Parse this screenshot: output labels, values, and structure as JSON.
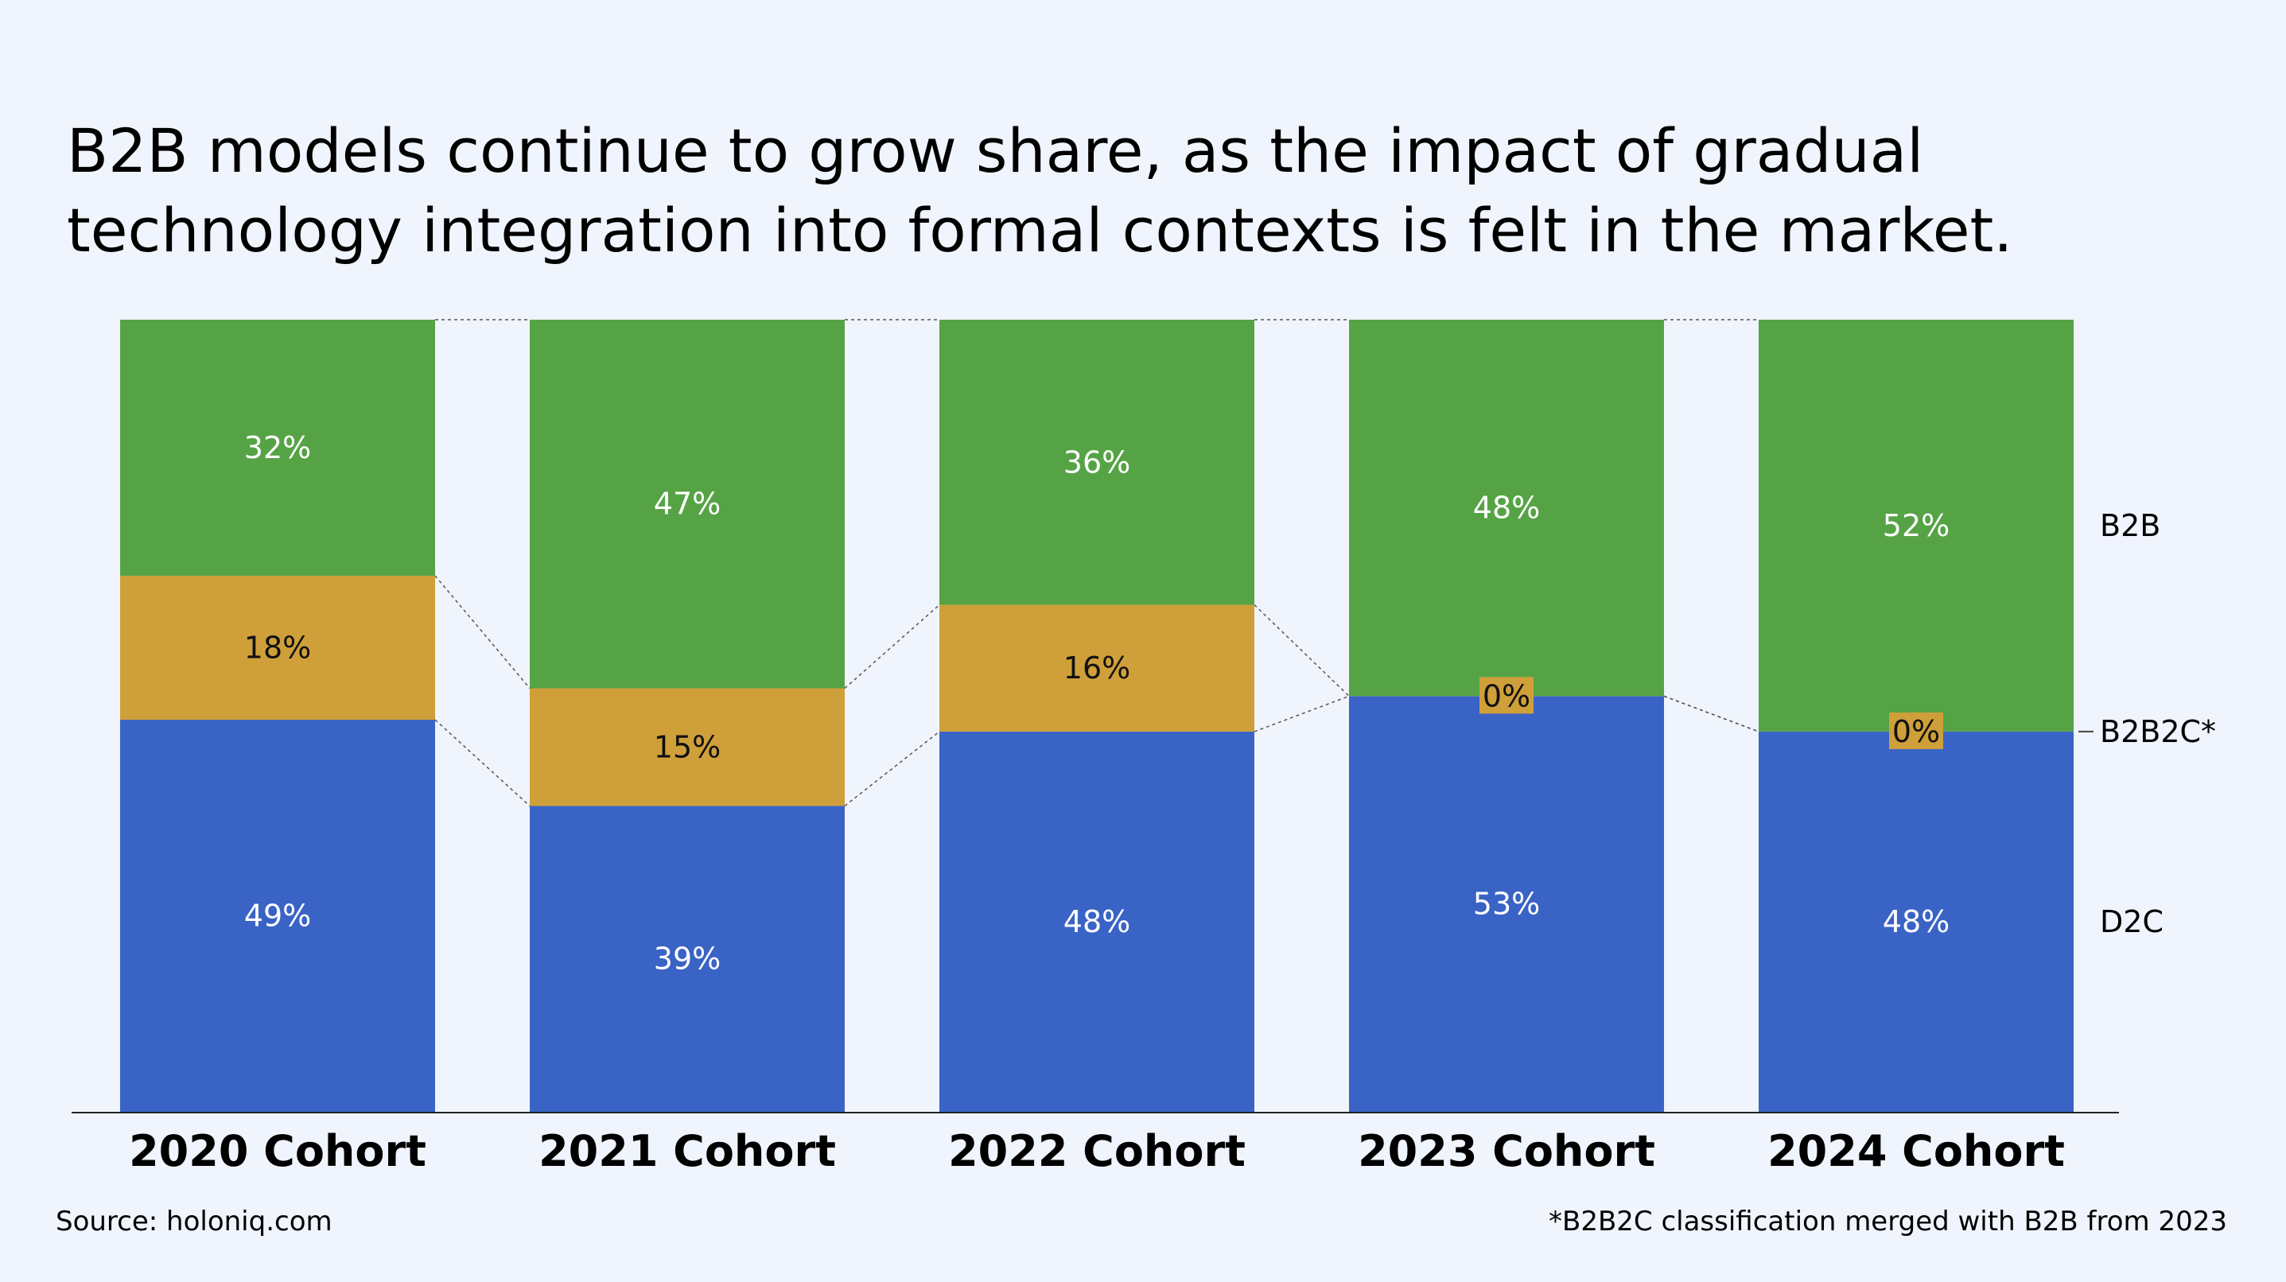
{
  "title_lines": [
    "B2B models continue to grow share, as the impact of gradual",
    "technology integration into formal contexts is felt in the market."
  ],
  "source": "Source: holoniq.com",
  "footnote": "*B2B2C classification merged with B2B from 2023",
  "colors": {
    "D2C": "#3a63c6",
    "B2B2C": "#cf9f3a",
    "B2B": "#56a346",
    "background": "#f0f4fc"
  },
  "chart_data": {
    "type": "bar",
    "stacked": true,
    "categories": [
      "2020 Cohort",
      "2021 Cohort",
      "2022 Cohort",
      "2023 Cohort",
      "2024 Cohort"
    ],
    "series": [
      {
        "name": "D2C",
        "values": [
          49,
          39,
          48,
          53,
          48
        ],
        "labels": [
          "49%",
          "39%",
          "48%",
          "53%",
          "48%"
        ]
      },
      {
        "name": "B2B2C*",
        "values": [
          18,
          15,
          16,
          0,
          0
        ],
        "labels": [
          "18%",
          "15%",
          "16%",
          "0%",
          "0%"
        ]
      },
      {
        "name": "B2B",
        "values": [
          32,
          47,
          36,
          48,
          52
        ],
        "labels": [
          "32%",
          "47%",
          "36%",
          "48%",
          "52%"
        ]
      }
    ],
    "legend": "right",
    "connectors": "dashed"
  }
}
